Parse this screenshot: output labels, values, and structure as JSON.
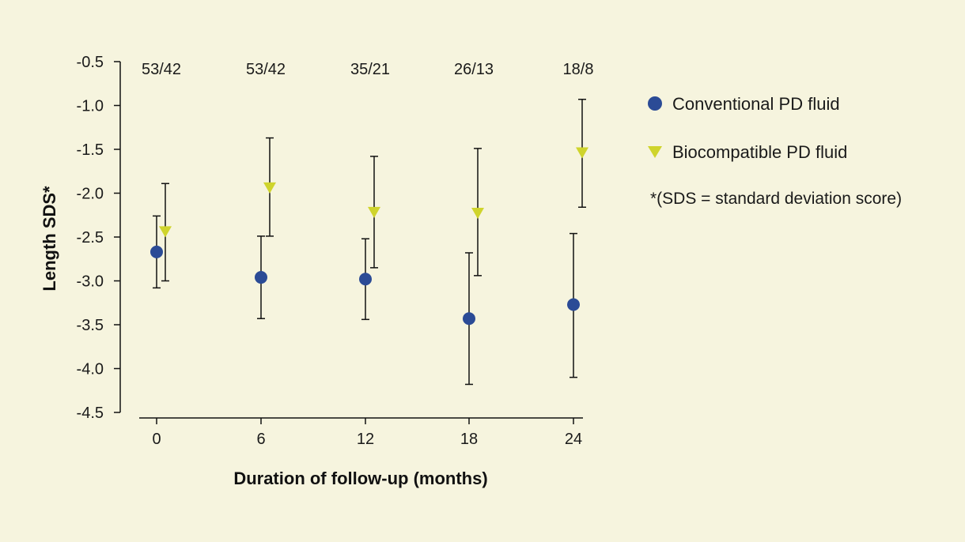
{
  "chart_data": {
    "type": "scatter",
    "xlabel": "Duration of follow-up (months)",
    "ylabel": "Length SDS*",
    "x": [
      0,
      6,
      12,
      18,
      24
    ],
    "xticks": [
      "0",
      "6",
      "12",
      "18",
      "24"
    ],
    "ylim": [
      -4.5,
      -0.5
    ],
    "yticks": [
      "-0.5",
      "-1.0",
      "-1.5",
      "-2.0",
      "-2.5",
      "-3.0",
      "-3.5",
      "-4.0",
      "-4.5"
    ],
    "counts": [
      "53/42",
      "53/42",
      "35/21",
      "26/13",
      "18/8"
    ],
    "series": [
      {
        "name": "Conventional PD fluid",
        "marker": "circle",
        "color": "#2b4b96",
        "values": [
          -2.67,
          -2.96,
          -2.98,
          -3.43,
          -3.27
        ],
        "upper": [
          -2.26,
          -2.49,
          -2.52,
          -2.68,
          -2.46
        ],
        "lower": [
          -3.08,
          -3.43,
          -3.44,
          -4.18,
          -4.1
        ]
      },
      {
        "name": "Biocompatible PD fluid",
        "marker": "triangle-down",
        "color": "#cfd42c",
        "values": [
          -2.44,
          -1.94,
          -2.22,
          -2.23,
          -1.54
        ],
        "upper": [
          -1.89,
          -1.37,
          -1.58,
          -1.49,
          -0.93
        ],
        "lower": [
          -3.0,
          -2.49,
          -2.85,
          -2.94,
          -2.16
        ]
      }
    ],
    "note": "*(SDS = standard deviation score)",
    "grid": false,
    "legend_position": "right"
  }
}
